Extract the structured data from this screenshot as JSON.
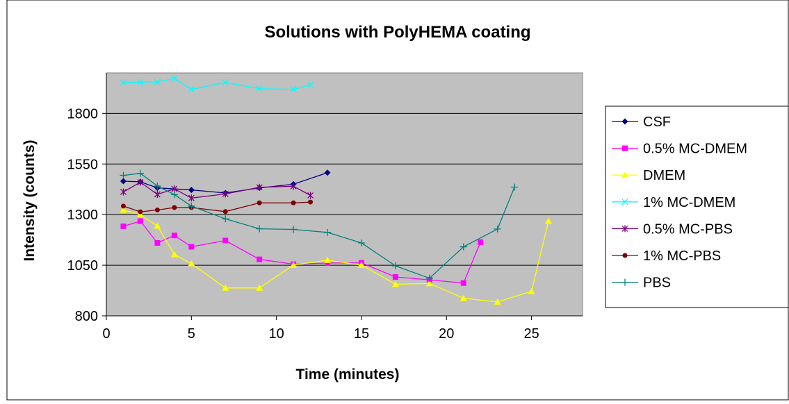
{
  "chart_data": {
    "type": "line",
    "title": "Solutions with PolyHEMA coating",
    "xlabel": "Time (minutes)",
    "ylabel": "Intensity (counts)",
    "xlim": [
      0,
      28
    ],
    "ylim": [
      800,
      2000
    ],
    "x_ticks": [
      0,
      5,
      10,
      15,
      20,
      25
    ],
    "x_tick_labels": [
      "0",
      "5",
      "10",
      "15",
      "20",
      "25"
    ],
    "y_ticks": [
      800,
      1050,
      1300,
      1550,
      1800
    ],
    "y_tick_labels": [
      "800",
      "1050",
      "1300",
      "1550",
      "1800"
    ],
    "grid": "horizontal major gridlines",
    "plot_background": "#c0c0c0",
    "legend_position": "right",
    "series": [
      {
        "name": "CSF",
        "color": "#000080",
        "marker": "diamond",
        "x": [
          1,
          2,
          3,
          5,
          7,
          9,
          11,
          13
        ],
        "y": [
          1465,
          1462,
          1432,
          1422,
          1407,
          1432,
          1450,
          1507
        ]
      },
      {
        "name": "0.5% MC-DMEM",
        "color": "#ff00ff",
        "marker": "square",
        "x": [
          1,
          2,
          3,
          4,
          5,
          7,
          9,
          11,
          13,
          15,
          17,
          19,
          21,
          22
        ],
        "y": [
          1242,
          1268,
          1160,
          1197,
          1141,
          1172,
          1079,
          1055,
          1061,
          1062,
          992,
          978,
          962,
          1164
        ]
      },
      {
        "name": "DMEM",
        "color": "#ffff00",
        "marker": "triangle",
        "x": [
          1,
          2,
          3,
          4,
          5,
          7,
          9,
          11,
          13,
          15,
          17,
          19,
          21,
          23,
          25,
          26
        ],
        "y": [
          1323,
          1300,
          1244,
          1103,
          1058,
          938,
          938,
          1051,
          1075,
          1051,
          956,
          960,
          887,
          869,
          921,
          1268
        ]
      },
      {
        "name": "1% MC-DMEM",
        "color": "#00ffff",
        "marker": "x",
        "x": [
          1,
          2,
          3,
          4,
          5,
          7,
          9,
          11,
          12
        ],
        "y": [
          1952,
          1955,
          1955,
          1973,
          1918,
          1953,
          1922,
          1919,
          1941
        ]
      },
      {
        "name": "0.5% MC-PBS",
        "color": "#800080",
        "marker": "star",
        "x": [
          1,
          2,
          3,
          4,
          5,
          7,
          9,
          11,
          12
        ],
        "y": [
          1412,
          1460,
          1400,
          1427,
          1382,
          1402,
          1435,
          1440,
          1395
        ]
      },
      {
        "name": "1% MC-PBS",
        "color": "#800000",
        "marker": "circle",
        "x": [
          1,
          2,
          3,
          4,
          5,
          7,
          9,
          11,
          12
        ],
        "y": [
          1342,
          1314,
          1323,
          1335,
          1335,
          1315,
          1358,
          1358,
          1362
        ]
      },
      {
        "name": "PBS",
        "color": "#008080",
        "marker": "plus",
        "x": [
          1,
          2,
          3,
          4,
          5,
          7,
          9,
          11,
          13,
          15,
          17,
          19,
          21,
          23,
          24
        ],
        "y": [
          1494,
          1504,
          1441,
          1399,
          1342,
          1279,
          1230,
          1227,
          1212,
          1160,
          1047,
          986,
          1141,
          1229,
          1436
        ]
      }
    ]
  }
}
